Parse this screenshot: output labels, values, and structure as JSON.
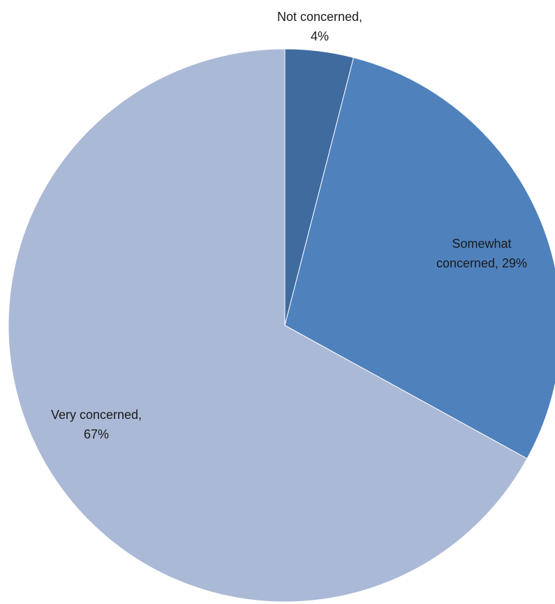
{
  "chart_data": {
    "type": "pie",
    "title": "",
    "start": "12 o'clock",
    "direction": "clockwise",
    "legend": "none",
    "slices": [
      {
        "label": "Not concerned",
        "value": 4,
        "display": "4%",
        "color": "#3f6b9f",
        "label_lines": [
          "Not concerned,",
          "4%"
        ]
      },
      {
        "label": "Somewhat concerned",
        "value": 29,
        "display": "29%",
        "color": "#4f81bd",
        "label_lines": [
          "Somewhat",
          "concerned, 29%"
        ]
      },
      {
        "label": "Very concerned",
        "value": 67,
        "display": "67%",
        "color": "#aab9d6",
        "label_lines": [
          "Very concerned,",
          "67%"
        ]
      }
    ]
  }
}
